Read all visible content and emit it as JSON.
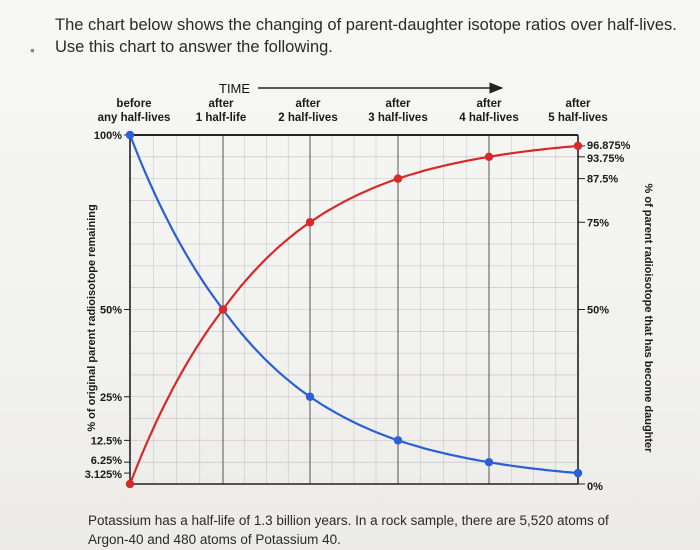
{
  "question": {
    "prompt": "The chart below shows the changing of parent-daughter isotope ratios over half-lives. Use this chart to answer the following.",
    "bullet": "•"
  },
  "footer": {
    "text": "Potassium has a half-life of 1.3 billion years. In a rock sample, there are 5,520 atoms of Argon-40 and 480 atoms of Potassium 40."
  },
  "colors": {
    "parent": "#2a5fd6",
    "daughter": "#d62a2a",
    "grid": "#9a9a9a",
    "axis": "#222222"
  },
  "chart_data": {
    "type": "line",
    "title": "",
    "time_label": "TIME",
    "x": [
      0,
      1,
      2,
      3,
      4,
      5
    ],
    "categories": [
      [
        "before",
        "any half-lives"
      ],
      [
        "after",
        "1 half-life"
      ],
      [
        "after",
        "2 half-lives"
      ],
      [
        "after",
        "3 half-lives"
      ],
      [
        "after",
        "4 half-lives"
      ],
      [
        "after",
        "5 half-lives"
      ]
    ],
    "ylabel_left": "% of original parent radioisotope remaining",
    "ylabel_right": "% of parent radioisotope that has become daughter",
    "ylim": [
      0,
      100
    ],
    "left_ticks": [
      {
        "v": 100,
        "label": "100%"
      },
      {
        "v": 50,
        "label": "50%"
      },
      {
        "v": 25,
        "label": "25%"
      },
      {
        "v": 12.5,
        "label": "12.5%"
      },
      {
        "v": 6.25,
        "label": "6.25%"
      },
      {
        "v": 3.125,
        "label": "3.125%"
      }
    ],
    "right_ticks": [
      {
        "v": 96.875,
        "label": "96.875%"
      },
      {
        "v": 93.75,
        "label": "93.75%"
      },
      {
        "v": 87.5,
        "label": "87.5%"
      },
      {
        "v": 75,
        "label": "75%"
      },
      {
        "v": 50,
        "label": "50%"
      },
      {
        "v": 0,
        "label": "0%"
      }
    ],
    "grid": true,
    "series": [
      {
        "id": "parent",
        "values": [
          100,
          50,
          25,
          12.5,
          6.25,
          3.125
        ]
      },
      {
        "id": "daughter",
        "values": [
          0,
          50,
          75,
          87.5,
          93.75,
          96.875
        ]
      }
    ]
  }
}
